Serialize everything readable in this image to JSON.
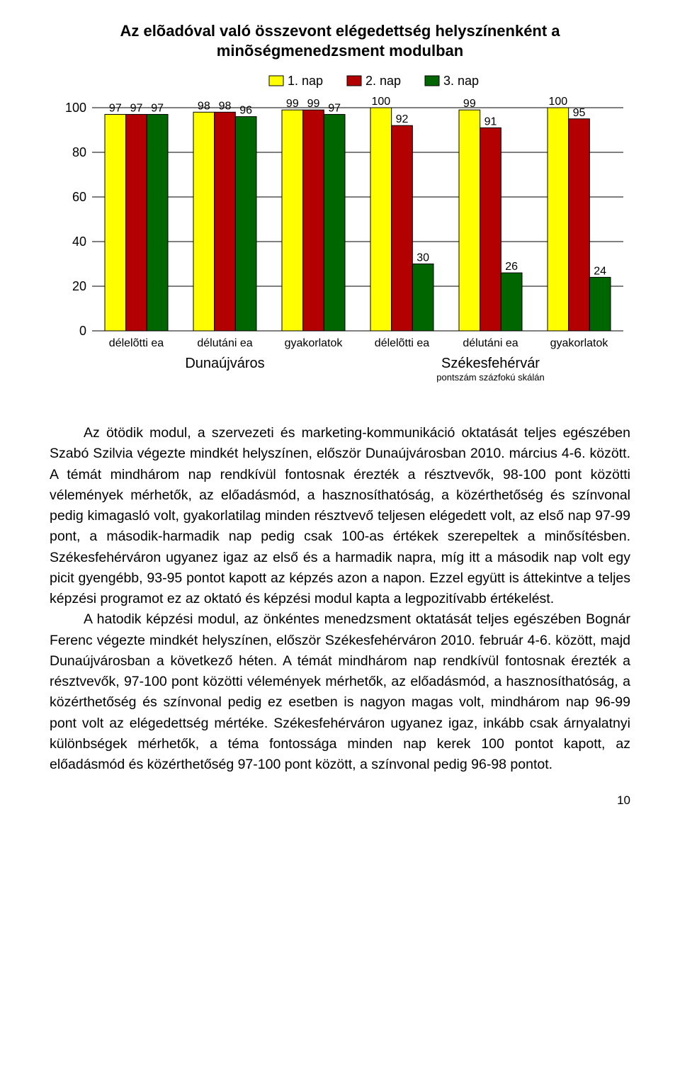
{
  "chart": {
    "type": "bar",
    "title_line1": "Az elõadóval való összevont elégedettség helyszínenként a",
    "title_line2": "minõségmenedzsment modulban",
    "title_fontsize": 22,
    "legend": {
      "items": [
        "1. nap",
        "2. nap",
        "3. nap"
      ],
      "colors": [
        "#ffff00",
        "#b30000",
        "#006600"
      ],
      "fontsize": 18
    },
    "y_axis": {
      "min": 0,
      "max": 100,
      "tick_step": 20,
      "ticks": [
        0,
        20,
        40,
        60,
        80,
        100
      ],
      "fontsize": 18,
      "gridline_color": "#000000"
    },
    "groups": [
      {
        "label": "délelõtti ea",
        "region": "Dunaújváros",
        "values": [
          97,
          97,
          97
        ]
      },
      {
        "label": "délutáni ea",
        "region": "Dunaújváros",
        "values": [
          98,
          98,
          96
        ]
      },
      {
        "label": "gyakorlatok",
        "region": "Dunaújváros",
        "values": [
          99,
          99,
          97
        ]
      },
      {
        "label": "délelõtti ea",
        "region": "Székesfehérvár",
        "values": [
          100,
          92,
          30
        ]
      },
      {
        "label": "délutáni ea",
        "region": "Székesfehérvár",
        "values": [
          99,
          91,
          26
        ]
      },
      {
        "label": "gyakorlatok",
        "region": "Székesfehérvár",
        "values": [
          100,
          95,
          24
        ]
      }
    ],
    "region_labels": [
      "Dunaújváros",
      "Székesfehérvár"
    ],
    "axis_caption": "pontszám százfokú skálán",
    "xlabel_fontsize": 16,
    "region_fontsize": 20,
    "caption_fontsize": 13,
    "bar_border_color": "#000000",
    "background_color": "#ffffff",
    "value_label_fontsize": 16
  },
  "paragraphs": {
    "p1": "Az ötödik modul, a szervezeti és marketing-kommunikáció oktatását teljes egészében Szabó Szilvia végezte mindkét helyszínen, először Dunaújvárosban 2010. március 4-6. között. A témát mindhárom nap rendkívül fontosnak érezték a résztvevők, 98-100 pont közötti vélemények mérhetők, az előadásmód, a hasznosíthatóság, a közérthetőség és színvonal pedig kimagasló volt, gyakorlatilag minden résztvevő teljesen elégedett volt, az első nap 97-99 pont, a második-harmadik nap pedig csak 100-as értékek szerepeltek a minősítésben. Székesfehérváron ugyanez igaz az első és a harmadik napra, míg itt a második nap volt egy picit gyengébb, 93-95 pontot kapott az képzés azon a napon. Ezzel együtt is áttekintve a teljes képzési programot ez az oktató és képzési modul kapta a legpozitívabb értékelést.",
    "p2": "A hatodik képzési modul, az önkéntes menedzsment oktatását teljes egészében Bognár Ferenc végezte mindkét helyszínen, először Székesfehérváron 2010. február 4-6. között, majd Dunaújvárosban a következő héten. A témát mindhárom nap rendkívül fontosnak érezték a résztvevők, 97-100 pont közötti vélemények mérhetők, az előadásmód, a hasznosíthatóság, a közérthetőség és színvonal pedig ez esetben is nagyon magas volt, mindhárom nap 96-99 pont volt az elégedettség mértéke. Székesfehérváron ugyanez igaz, inkább csak árnyalatnyi különbségek mérhetők, a téma fontossága minden nap kerek 100 pontot kapott, az előadásmód és közérthetőség 97-100 pont között, a színvonal pedig 96-98 pontot."
  },
  "page_number": "10"
}
